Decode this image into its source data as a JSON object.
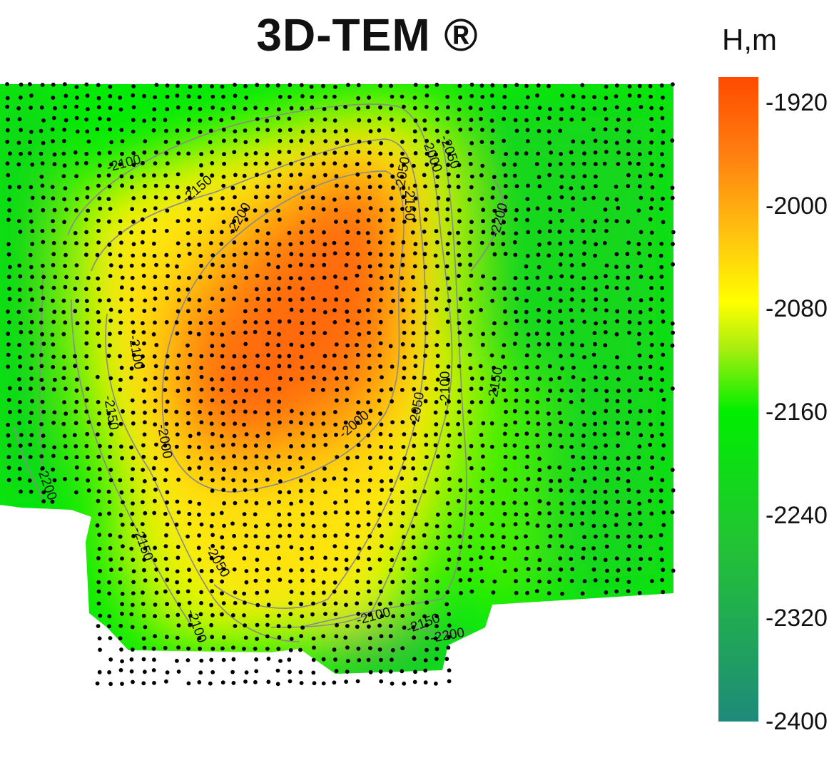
{
  "chart_data": {
    "type": "heatmap",
    "title": "3D-TEM ®",
    "colorbar": {
      "unit": "H,m",
      "min": -2400,
      "max": -1900,
      "tick_labels": [
        "-1920",
        "-2000",
        "-2080",
        "-2160",
        "-2240",
        "-2320",
        "-2400"
      ],
      "tick_values": [
        -1920,
        -2000,
        -2080,
        -2160,
        -2240,
        -2320,
        -2400
      ],
      "color_stops": [
        {
          "value": -1900,
          "color": "#ff4a00"
        },
        {
          "value": -1960,
          "color": "#ff7f10"
        },
        {
          "value": -2020,
          "color": "#ffc010"
        },
        {
          "value": -2075,
          "color": "#ffff00"
        },
        {
          "value": -2110,
          "color": "#aaee10"
        },
        {
          "value": -2160,
          "color": "#00ee00"
        },
        {
          "value": -2260,
          "color": "#22c433"
        },
        {
          "value": -2400,
          "color": "#1e8a7a"
        }
      ]
    },
    "contour_labels": [
      "-2200",
      "-2150",
      "-2100",
      "-2050",
      "-2000",
      "-2000",
      "-2050",
      "-2100",
      "-2150",
      "-2200",
      "-2100",
      "-2150",
      "-2200",
      "-2150",
      "-2050",
      "-2000",
      "-2050",
      "-2100",
      "-2150",
      "-2100",
      "-2150",
      "-2200",
      "-2100",
      "-2000",
      "-2100",
      "-2050",
      "-2000",
      "-2050",
      "-2150",
      "-2200"
    ],
    "grid": false,
    "legend_placement": "right"
  }
}
